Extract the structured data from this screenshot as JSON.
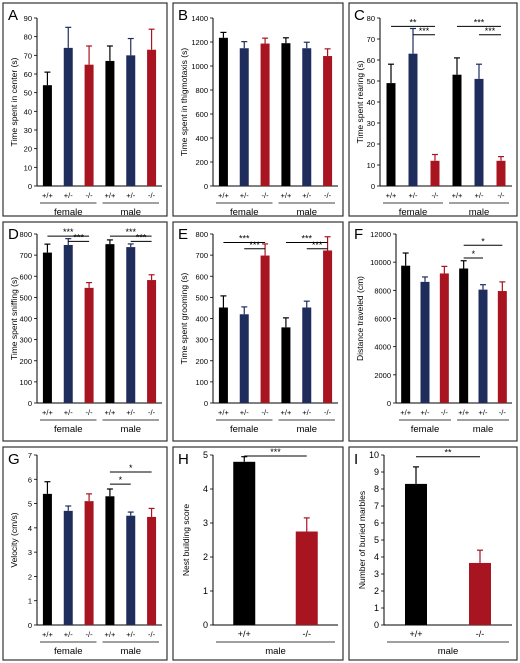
{
  "colors": {
    "wt": "#000000",
    "het": "#1f2d5c",
    "ko": "#a8141f",
    "frame": "#333333"
  },
  "chart_data": [
    {
      "panel": "A",
      "type": "bar",
      "ylabel": "Time spent in center (s)",
      "ylim": [
        0,
        90
      ],
      "yticks": [
        0,
        10,
        20,
        30,
        40,
        50,
        60,
        70,
        80,
        90
      ],
      "categories": [
        "+/+",
        "+/-",
        "-/-",
        "+/+",
        "+/-",
        "-/-"
      ],
      "groups": [
        {
          "label": "female",
          "span": [
            0,
            2
          ]
        },
        {
          "label": "male",
          "span": [
            3,
            5
          ]
        }
      ],
      "values": [
        54,
        74,
        65,
        67,
        70,
        73
      ],
      "errors": [
        7,
        11,
        10,
        8,
        9,
        11
      ],
      "significance": []
    },
    {
      "panel": "B",
      "type": "bar",
      "ylabel": "Time spent in thigmotaxis (s)",
      "ylim": [
        0,
        1400
      ],
      "yticks": [
        0,
        200,
        400,
        600,
        800,
        1000,
        1200,
        1400
      ],
      "categories": [
        "+/+",
        "+/-",
        "-/-",
        "+/+",
        "+/-",
        "-/-"
      ],
      "groups": [
        {
          "label": "female",
          "span": [
            0,
            2
          ]
        },
        {
          "label": "male",
          "span": [
            3,
            5
          ]
        }
      ],
      "values": [
        1235,
        1148,
        1187,
        1190,
        1148,
        1083
      ],
      "errors": [
        45,
        55,
        45,
        45,
        50,
        60
      ],
      "significance": []
    },
    {
      "panel": "C",
      "type": "bar",
      "ylabel": "Time spent rearing (s)",
      "ylim": [
        0,
        80
      ],
      "yticks": [
        0,
        10,
        20,
        30,
        40,
        50,
        60,
        70,
        80
      ],
      "categories": [
        "+/+",
        "+/-",
        "-/-",
        "+/+",
        "+/-",
        "-/-"
      ],
      "groups": [
        {
          "label": "female",
          "span": [
            0,
            2
          ]
        },
        {
          "label": "male",
          "span": [
            3,
            5
          ]
        }
      ],
      "values": [
        49,
        63,
        12,
        53,
        51,
        12
      ],
      "errors": [
        9,
        12,
        3,
        8,
        7,
        2
      ],
      "significance": [
        {
          "from": 0,
          "to": 2,
          "label": "**",
          "level": 76
        },
        {
          "from": 1,
          "to": 2,
          "label": "***",
          "level": 72
        },
        {
          "from": 3,
          "to": 5,
          "label": "***",
          "level": 76
        },
        {
          "from": 4,
          "to": 5,
          "label": "***",
          "level": 72
        }
      ]
    },
    {
      "panel": "D",
      "type": "bar",
      "ylabel": "Time spent sniffing (s)",
      "ylim": [
        0,
        800
      ],
      "yticks": [
        0,
        100,
        200,
        300,
        400,
        500,
        600,
        700,
        800
      ],
      "categories": [
        "+/+",
        "+/-",
        "-/-",
        "+/+",
        "+/-",
        "-/-"
      ],
      "groups": [
        {
          "label": "female",
          "span": [
            0,
            2
          ]
        },
        {
          "label": "male",
          "span": [
            3,
            5
          ]
        }
      ],
      "values": [
        712,
        748,
        545,
        752,
        738,
        582
      ],
      "errors": [
        40,
        30,
        25,
        20,
        15,
        25
      ],
      "significance": [
        {
          "from": 0,
          "to": 2,
          "label": "***",
          "level": 790
        },
        {
          "from": 1,
          "to": 2,
          "label": "***",
          "level": 765
        },
        {
          "from": 3,
          "to": 5,
          "label": "***",
          "level": 790
        },
        {
          "from": 4,
          "to": 5,
          "label": "***",
          "level": 765
        }
      ]
    },
    {
      "panel": "E",
      "type": "bar",
      "ylabel": "Time spent grooming (s)",
      "ylim": [
        0,
        800
      ],
      "yticks": [
        0,
        100,
        200,
        300,
        400,
        500,
        600,
        700,
        800
      ],
      "categories": [
        "+/+",
        "+/-",
        "-/-",
        "+/+",
        "+/-",
        "-/-"
      ],
      "groups": [
        {
          "label": "female",
          "span": [
            0,
            2
          ]
        },
        {
          "label": "male",
          "span": [
            3,
            5
          ]
        }
      ],
      "values": [
        452,
        420,
        698,
        358,
        452,
        722
      ],
      "errors": [
        55,
        35,
        55,
        45,
        30,
        65
      ],
      "significance": [
        {
          "from": 0,
          "to": 2,
          "label": "***",
          "level": 760
        },
        {
          "from": 1,
          "to": 2,
          "label": "***",
          "level": 730
        },
        {
          "from": 3,
          "to": 5,
          "label": "***",
          "level": 760
        },
        {
          "from": 4,
          "to": 5,
          "label": "***",
          "level": 730
        }
      ]
    },
    {
      "panel": "F",
      "type": "bar",
      "ylabel": "Distance traveled (cm)",
      "ylim": [
        0,
        12000
      ],
      "yticks": [
        0,
        2000,
        4000,
        6000,
        8000,
        10000,
        12000
      ],
      "categories": [
        "+/+",
        "+/-",
        "-/-",
        "+/+",
        "+/-",
        "-/-"
      ],
      "groups": [
        {
          "label": "female",
          "span": [
            0,
            2
          ]
        },
        {
          "label": "male",
          "span": [
            3,
            5
          ]
        }
      ],
      "values": [
        9750,
        8600,
        9200,
        9550,
        8050,
        7950
      ],
      "errors": [
        900,
        350,
        500,
        550,
        350,
        650
      ],
      "significance": [
        {
          "from": 3,
          "to": 5,
          "label": "*",
          "level": 11200
        },
        {
          "from": 3,
          "to": 4,
          "label": "*",
          "level": 10300
        }
      ]
    },
    {
      "panel": "G",
      "type": "bar",
      "ylabel": "Velocity (cm/s)",
      "ylim": [
        0,
        7
      ],
      "yticks": [
        0,
        1,
        2,
        3,
        4,
        5,
        6,
        7
      ],
      "categories": [
        "+/+",
        "+/-",
        "-/-",
        "+/+",
        "+/-",
        "-/-"
      ],
      "groups": [
        {
          "label": "female",
          "span": [
            0,
            2
          ]
        },
        {
          "label": "male",
          "span": [
            3,
            5
          ]
        }
      ],
      "values": [
        5.4,
        4.7,
        5.1,
        5.3,
        4.5,
        4.45
      ],
      "errors": [
        0.5,
        0.2,
        0.3,
        0.3,
        0.15,
        0.35
      ],
      "significance": [
        {
          "from": 3,
          "to": 5,
          "label": "*",
          "level": 6.3
        },
        {
          "from": 3,
          "to": 4,
          "label": "*",
          "level": 5.8
        }
      ]
    },
    {
      "panel": "H",
      "type": "bar",
      "ylabel": "Nest building score",
      "ylim": [
        0,
        5
      ],
      "yticks": [
        0,
        1,
        2,
        3,
        4,
        5
      ],
      "categories": [
        "+/+",
        "-/-"
      ],
      "groups": [
        {
          "label": "male",
          "span": [
            0,
            1
          ]
        }
      ],
      "values": [
        4.8,
        2.75
      ],
      "errors": [
        0.15,
        0.4
      ],
      "significance": [
        {
          "from": 0,
          "to": 1,
          "label": "***",
          "level": 4.97
        }
      ]
    },
    {
      "panel": "I",
      "type": "bar",
      "ylabel": "Number of buried marbles",
      "ylim": [
        0,
        10
      ],
      "yticks": [
        0,
        1,
        2,
        3,
        4,
        5,
        6,
        7,
        8,
        9,
        10
      ],
      "categories": [
        "+/+",
        "-/-"
      ],
      "groups": [
        {
          "label": "male",
          "span": [
            0,
            1
          ]
        }
      ],
      "values": [
        8.3,
        3.65
      ],
      "errors": [
        1.0,
        0.75
      ],
      "significance": [
        {
          "from": 0,
          "to": 1,
          "label": "**",
          "level": 9.9
        }
      ]
    }
  ]
}
